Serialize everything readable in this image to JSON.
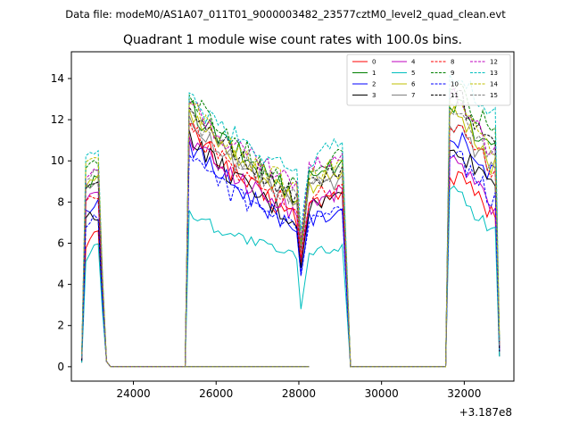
{
  "suptitle": "Data file: modeM0/AS1A07_011T01_9000003482_23577cztM0_level2_quad_clean.evt",
  "chart_data": {
    "type": "line",
    "title": "Quadrant 1 module wise count rates with 100.0s bins.",
    "xlabel": "",
    "ylabel": "",
    "x_offset_label": "+3.187e8",
    "xlim": [
      22500,
      33200
    ],
    "ylim": [
      -0.7,
      15.3
    ],
    "x_ticks": [
      24000,
      26000,
      28000,
      30000,
      32000
    ],
    "y_ticks": [
      0,
      2,
      4,
      6,
      8,
      10,
      12,
      14
    ],
    "grid": false,
    "legend_position": "top-right",
    "legend_columns": 4,
    "x": [
      22750,
      22850,
      22950,
      23050,
      23150,
      23250,
      23350,
      23450,
      25250,
      25350,
      25450,
      25550,
      25650,
      25750,
      25850,
      25950,
      26050,
      26150,
      26250,
      26350,
      26450,
      26550,
      26650,
      26750,
      26850,
      26950,
      27050,
      27150,
      27250,
      27350,
      27450,
      27550,
      27650,
      27750,
      27850,
      27950,
      28050,
      28150,
      28250,
      28350,
      28450,
      28550,
      28650,
      28750,
      28850,
      28950,
      29050,
      29150,
      29250,
      31550,
      31650,
      31750,
      31850,
      31950,
      32050,
      32150,
      32250,
      32350,
      32450,
      32550,
      32650,
      32750,
      32850
    ],
    "gap_zero_range": [
      23450,
      31450
    ],
    "series": [
      {
        "name": "0",
        "color": "#ff0000",
        "dash": "solid",
        "start": 0.4,
        "base": [
          6.0,
          6.2,
          6.4,
          6.5
        ],
        "peak": 11.8,
        "mid": 7.2,
        "dip": 5.0,
        "m2": 7.9,
        "r": [
          9.2,
          8.7,
          8.2,
          7.4
        ]
      },
      {
        "name": "1",
        "color": "#008000",
        "dash": "solid",
        "start": 0.4,
        "base": [
          8.6,
          8.8,
          9.0,
          9.1
        ],
        "peak": 12.8,
        "mid": 8.4,
        "dip": 5.9,
        "m2": 9.3,
        "r": [
          12.6,
          11.9,
          11.3,
          10.8
        ]
      },
      {
        "name": "2",
        "color": "#0000ff",
        "dash": "solid",
        "start": 0.3,
        "base": [
          7.5,
          7.7,
          7.9,
          8.1
        ],
        "peak": 11.0,
        "mid": 6.8,
        "dip": 4.5,
        "m2": 7.1,
        "r": [
          11.0,
          10.5,
          9.9,
          9.4
        ]
      },
      {
        "name": "3",
        "color": "#000000",
        "dash": "solid",
        "start": 0.2,
        "base": [
          7.2,
          7.3,
          7.2,
          7.1
        ],
        "peak": 11.5,
        "mid": 7.0,
        "dip": 4.8,
        "m2": 7.8,
        "r": [
          10.5,
          10.0,
          9.6,
          9.1
        ]
      },
      {
        "name": "4",
        "color": "#bf00bf",
        "dash": "solid",
        "start": 0.3,
        "base": [
          8.1,
          8.3,
          8.4,
          8.5
        ],
        "peak": 11.2,
        "mid": 7.5,
        "dip": 5.2,
        "m2": 8.0,
        "r": [
          10.1,
          9.4,
          8.7,
          7.8
        ]
      },
      {
        "name": "5",
        "color": "#00bfbf",
        "dash": "solid",
        "start": 0.2,
        "base": [
          5.2,
          5.5,
          5.8,
          6.0
        ],
        "peak": 7.6,
        "mid": 5.3,
        "dip": 2.8,
        "m2": 5.5,
        "r": [
          8.6,
          7.9,
          7.3,
          6.7
        ]
      },
      {
        "name": "6",
        "color": "#bfbf00",
        "dash": "solid",
        "start": 0.5,
        "base": [
          9.0,
          9.2,
          9.3,
          9.4
        ],
        "peak": 12.5,
        "mid": 8.2,
        "dip": 5.5,
        "m2": 8.8,
        "r": [
          12.2,
          11.4,
          10.6,
          9.8
        ]
      },
      {
        "name": "7",
        "color": "#808080",
        "dash": "solid",
        "start": 0.4,
        "base": [
          8.7,
          8.9,
          9.0,
          9.1
        ],
        "peak": 12.2,
        "mid": 8.0,
        "dip": 5.6,
        "m2": 8.6,
        "r": [
          11.7,
          11.0,
          10.4,
          9.9
        ]
      },
      {
        "name": "8",
        "color": "#ff0000",
        "dash": "dashed",
        "start": 0.4,
        "base": [
          7.9,
          8.1,
          8.2,
          8.3
        ],
        "peak": 11.9,
        "mid": 7.6,
        "dip": 5.3,
        "m2": 8.2,
        "r": [
          11.6,
          11.0,
          10.3,
          9.6
        ]
      },
      {
        "name": "9",
        "color": "#008000",
        "dash": "dashed",
        "start": 0.5,
        "base": [
          9.6,
          9.8,
          9.9,
          10.0
        ],
        "peak": 13.2,
        "mid": 8.9,
        "dip": 6.1,
        "m2": 9.7,
        "r": [
          13.5,
          12.8,
          12.1,
          11.4
        ]
      },
      {
        "name": "10",
        "color": "#0000ff",
        "dash": "dashed",
        "start": 0.3,
        "base": [
          6.8,
          7.0,
          7.2,
          7.3
        ],
        "peak": 10.3,
        "mid": 6.6,
        "dip": 4.4,
        "m2": 7.0,
        "r": [
          10.2,
          9.6,
          8.9,
          8.1
        ]
      },
      {
        "name": "11",
        "color": "#000000",
        "dash": "dashed",
        "start": 0.3,
        "base": [
          8.8,
          9.0,
          9.1,
          9.2
        ],
        "peak": 12.6,
        "mid": 8.3,
        "dip": 5.8,
        "m2": 9.0,
        "r": [
          13.0,
          12.3,
          11.7,
          11.1
        ]
      },
      {
        "name": "12",
        "color": "#bf00bf",
        "dash": "dashed",
        "start": 0.5,
        "base": [
          9.4,
          9.6,
          9.7,
          9.8
        ],
        "peak": 12.9,
        "mid": 8.8,
        "dip": 6.2,
        "m2": 9.6,
        "r": [
          13.2,
          12.4,
          11.6,
          10.7
        ]
      },
      {
        "name": "13",
        "color": "#00bfbf",
        "dash": "dashed",
        "start": 0.5,
        "base": [
          10.0,
          10.2,
          10.3,
          10.2
        ],
        "peak": 13.3,
        "mid": 9.4,
        "dip": 6.6,
        "m2": 10.1,
        "r": [
          14.2,
          13.6,
          13.0,
          12.3
        ]
      },
      {
        "name": "14",
        "color": "#bfbf00",
        "dash": "dashed",
        "start": 0.6,
        "base": [
          9.8,
          10.0,
          10.0,
          9.9
        ],
        "peak": 12.8,
        "mid": 8.6,
        "dip": 5.9,
        "m2": 9.3,
        "r": [
          12.9,
          12.2,
          11.5,
          10.7
        ]
      },
      {
        "name": "15",
        "color": "#808080",
        "dash": "dashed",
        "start": 0.4,
        "base": [
          9.0,
          9.2,
          9.3,
          9.3
        ],
        "peak": 12.4,
        "mid": 8.1,
        "dip": 5.7,
        "m2": 8.9,
        "r": [
          12.4,
          11.8,
          11.1,
          10.4
        ]
      }
    ]
  }
}
